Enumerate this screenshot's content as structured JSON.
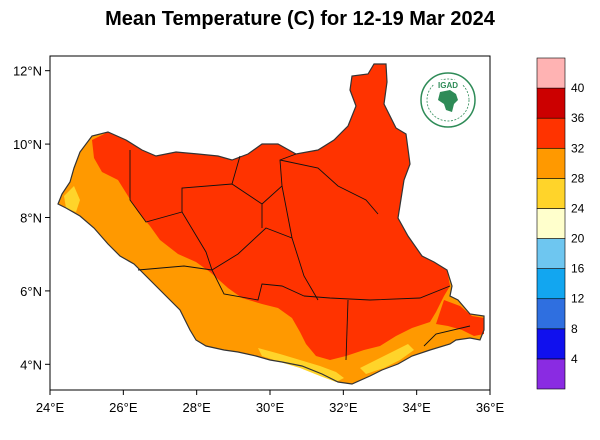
{
  "title": "Mean Temperature (C) for 12-19 Mar 2024",
  "logo": {
    "text": "IGAD",
    "icon": "igad-logo-seal"
  },
  "map": {
    "lon_range": [
      24,
      36
    ],
    "lat_range": [
      3.3,
      12.4
    ],
    "x_ticks": [
      {
        "value": 24,
        "label": "24°E"
      },
      {
        "value": 26,
        "label": "26°E"
      },
      {
        "value": 28,
        "label": "28°E"
      },
      {
        "value": 30,
        "label": "30°E"
      },
      {
        "value": 32,
        "label": "32°E"
      },
      {
        "value": 34,
        "label": "34°E"
      },
      {
        "value": 36,
        "label": "36°E"
      }
    ],
    "y_ticks": [
      {
        "value": 12,
        "label": "12°N"
      },
      {
        "value": 10,
        "label": "10°N"
      },
      {
        "value": 8,
        "label": "8°N"
      },
      {
        "value": 6,
        "label": "6°N"
      },
      {
        "value": 4,
        "label": "4°N"
      }
    ]
  },
  "colorbar": {
    "bins": [
      {
        "color": "#8a2be2"
      },
      {
        "color": "#1010ee"
      },
      {
        "color": "#2f6fe0"
      },
      {
        "color": "#12a6f0"
      },
      {
        "color": "#6ec6f0"
      },
      {
        "color": "#ffffcc"
      },
      {
        "color": "#ffd42a"
      },
      {
        "color": "#ff9900"
      },
      {
        "color": "#ff3300"
      },
      {
        "color": "#cc0000"
      },
      {
        "color": "#ffb3b3"
      }
    ],
    "labels": [
      "4",
      "8",
      "12",
      "16",
      "20",
      "24",
      "28",
      "32",
      "36",
      "40"
    ]
  },
  "colors": {
    "band_28_32": "#ff9900",
    "band_24_28": "#ffd42a",
    "band_32_36": "#ff3300",
    "border": "#000000"
  }
}
